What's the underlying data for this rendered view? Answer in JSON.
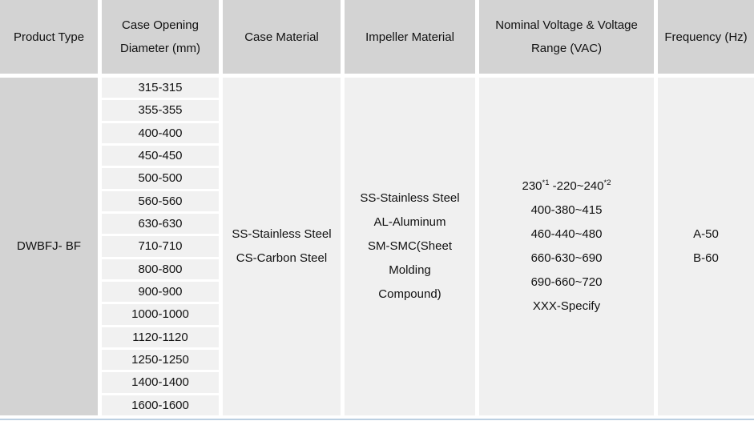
{
  "table": {
    "headers": [
      {
        "label": "Product Type"
      },
      {
        "label": "Case Opening Diameter (mm)"
      },
      {
        "label": "Case Material"
      },
      {
        "label": "Impeller Material"
      },
      {
        "label": "Nominal Voltage & Voltage Range (VAC)"
      },
      {
        "label": "Frequency (Hz)"
      }
    ],
    "body": {
      "product_type": "DWBFJ- BF",
      "case_opening_diameters": [
        "315-315",
        "355-355",
        "400-400",
        "450-450",
        "500-500",
        "560-560",
        "630-630",
        "710-710",
        "800-800",
        "900-900",
        "1000-1000",
        "1120-1120",
        "1250-1250",
        "1400-1400",
        "1600-1600"
      ],
      "case_materials": [
        "SS-Stainless Steel",
        "CS-Carbon Steel"
      ],
      "impeller_materials": [
        "SS-Stainless Steel",
        "AL-Aluminum",
        "SM-SMC(Sheet Molding Compound)"
      ],
      "voltage_line1": {
        "base": "230",
        "sup1": "*1",
        "mid": " -220~240",
        "sup2": "*2"
      },
      "voltage_rest": [
        "400-380~415",
        "460-440~480",
        "660-630~690",
        "690-660~720",
        "XXX-Specify"
      ],
      "frequencies": [
        "A-50",
        "B-60"
      ]
    },
    "colors": {
      "header_bg": "#d3d3d3",
      "body_cell_bg": "#f0f0f0",
      "stripe_bg": "#f1f1f1",
      "bottom_border": "#bcd0e2",
      "text": "#111111"
    }
  }
}
